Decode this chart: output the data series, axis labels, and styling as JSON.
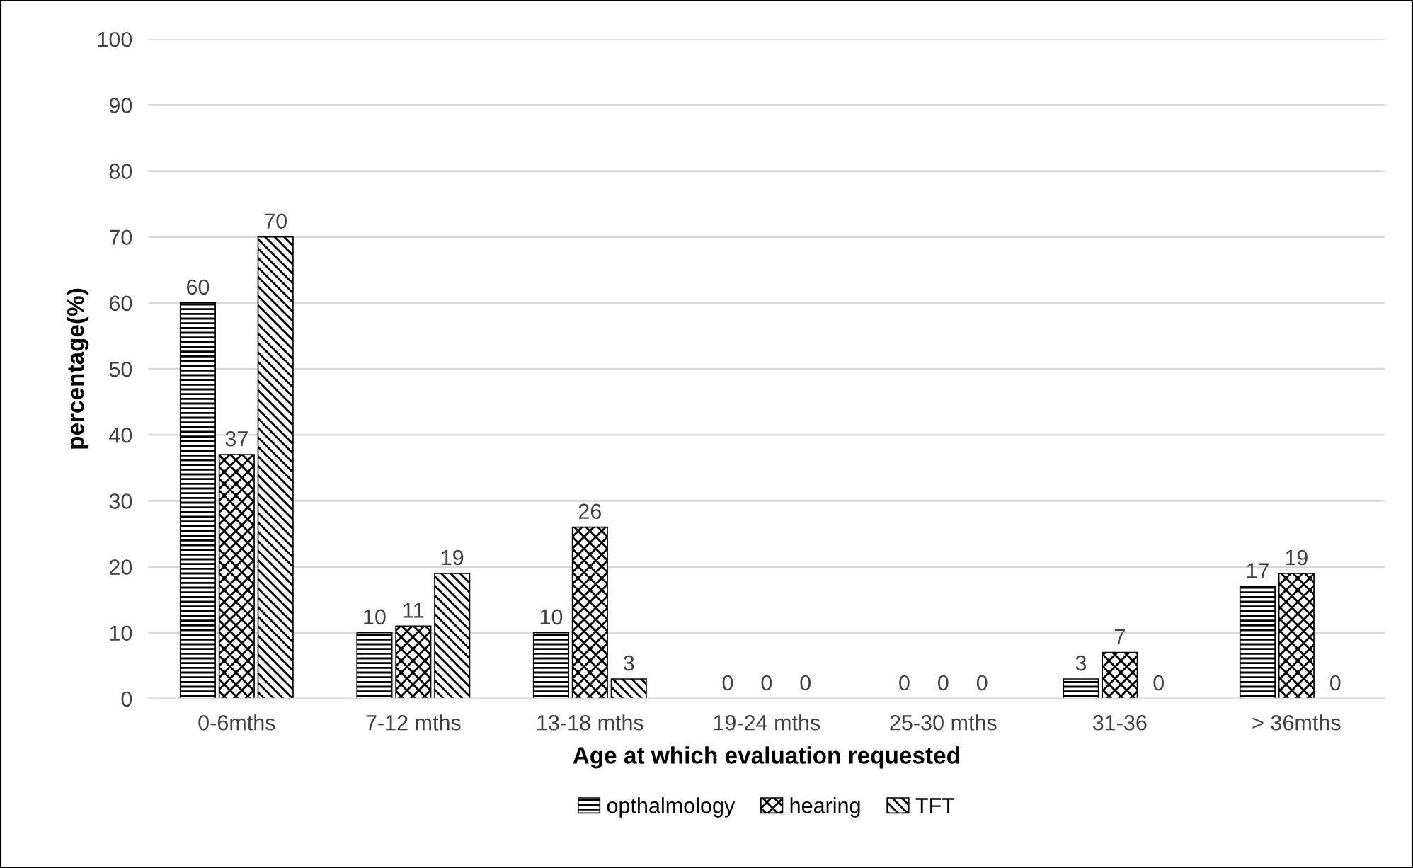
{
  "chart_data": {
    "type": "bar",
    "xlabel": "Age at which evaluation requested",
    "ylabel": "percentage(%)",
    "categories": [
      "0-6mths",
      "7-12 mths",
      "13-18 mths",
      "19-24 mths",
      "25-30 mths",
      "31-36",
      "> 36mths"
    ],
    "series": [
      {
        "name": "opthalmology",
        "color": "#000000",
        "values": [
          60,
          10,
          10,
          0,
          0,
          3,
          17
        ]
      },
      {
        "name": "hearing",
        "color": "#000000",
        "values": [
          37,
          11,
          26,
          0,
          0,
          7,
          19
        ]
      },
      {
        "name": "TFT",
        "color": "#000000",
        "values": [
          70,
          19,
          3,
          0,
          0,
          0,
          0
        ]
      }
    ],
    "ylim": [
      0,
      100
    ],
    "yticks": [
      0,
      10,
      20,
      30,
      40,
      50,
      60,
      70,
      80,
      90,
      100
    ],
    "grid": "y",
    "legend": "bottom",
    "data_labels": true
  }
}
